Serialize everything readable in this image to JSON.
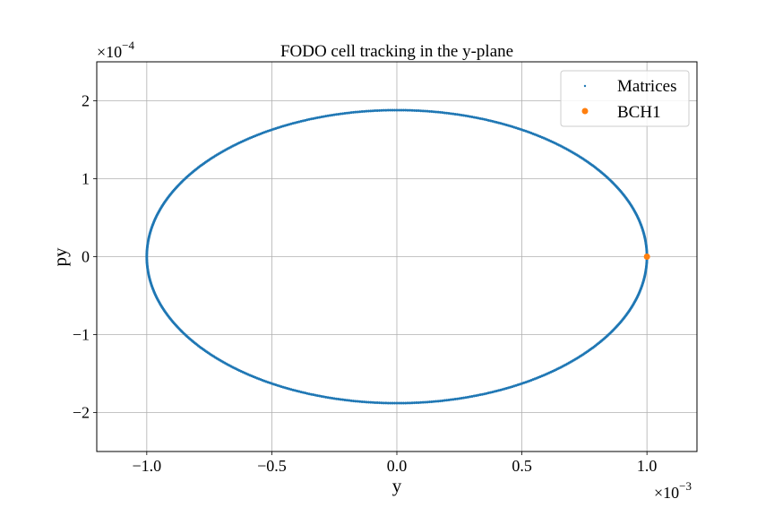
{
  "chart_data": {
    "type": "scatter",
    "title": "FODO cell tracking in the y-plane",
    "xlabel": "y",
    "ylabel": "py",
    "x_offset_text": {
      "base": "×10",
      "exponent": "−3"
    },
    "y_offset_text": {
      "base": "×10",
      "exponent": "−4"
    },
    "xlim": [
      -0.0012,
      0.0012
    ],
    "ylim": [
      -0.00025,
      0.00025
    ],
    "x_ticks": [
      {
        "value": -0.001,
        "label": "−1.0"
      },
      {
        "value": -0.0005,
        "label": "−0.5"
      },
      {
        "value": 0.0,
        "label": "0.0"
      },
      {
        "value": 0.0005,
        "label": "0.5"
      },
      {
        "value": 0.001,
        "label": "1.0"
      }
    ],
    "y_ticks": [
      {
        "value": -0.0002,
        "label": "−2"
      },
      {
        "value": -0.0001,
        "label": "−1"
      },
      {
        "value": 0.0,
        "label": "0"
      },
      {
        "value": 0.0001,
        "label": "1"
      },
      {
        "value": 0.0002,
        "label": "2"
      }
    ],
    "grid": true,
    "legend_position": "top-right",
    "series": [
      {
        "name": "Matrices",
        "marker": "point",
        "color": "#1f77b4",
        "shape": "ellipse",
        "center": [
          0.0,
          0.0
        ],
        "semi_axis_y": 0.001,
        "semi_axis_py": 0.000188,
        "n_points": 720
      },
      {
        "name": "BCH1",
        "marker": "circle",
        "color": "#ff7f0e",
        "points": [
          [
            0.001,
            0.0
          ]
        ]
      }
    ]
  }
}
